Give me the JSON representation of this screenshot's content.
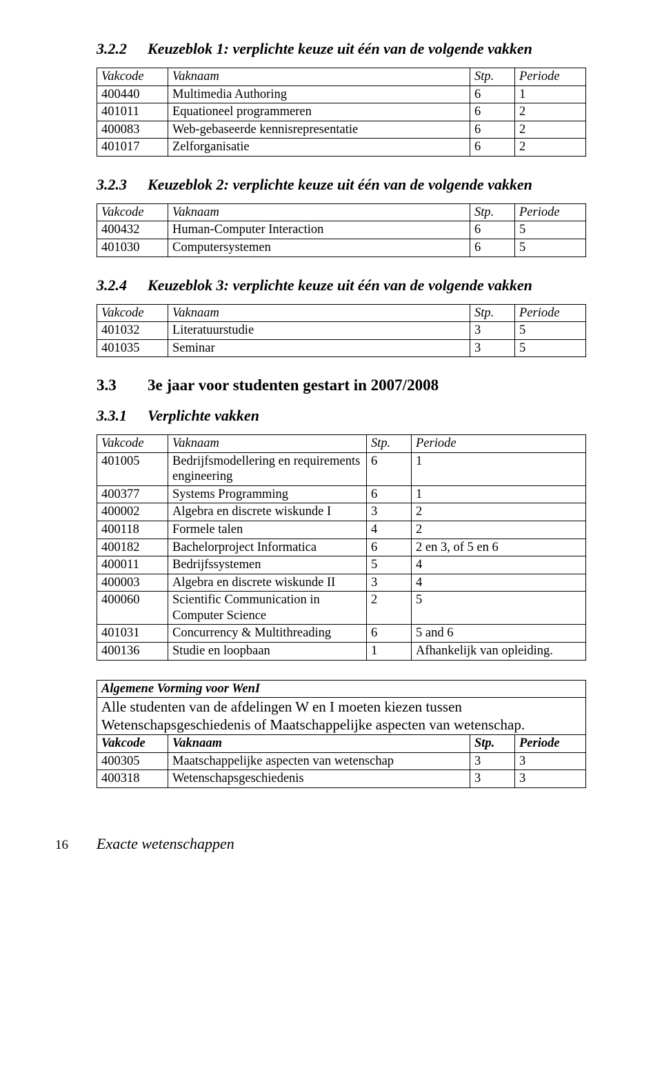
{
  "sections": {
    "s322": {
      "num": "3.2.2",
      "title": "Keuzeblok 1: verplichte keuze uit één van de volgende vakken"
    },
    "s323": {
      "num": "3.2.3",
      "title": "Keuzeblok 2: verplichte keuze uit één van de volgende vakken"
    },
    "s324": {
      "num": "3.2.4",
      "title": "Keuzeblok 3: verplichte keuze uit één van de volgende vakken"
    },
    "s33": {
      "num": "3.3",
      "title": "3e jaar voor studenten gestart in 2007/2008"
    },
    "s331": {
      "num": "3.3.1",
      "title": "Verplichte vakken"
    }
  },
  "headers": {
    "vakcode": "Vakcode",
    "vaknaam": "Vaknaam",
    "stp": "Stp.",
    "periode": "Periode"
  },
  "tbl322": {
    "rows": [
      {
        "code": "400440",
        "name": "Multimedia Authoring",
        "stp": "6",
        "per": "1"
      },
      {
        "code": "401011",
        "name": "Equationeel programmeren",
        "stp": "6",
        "per": "2"
      },
      {
        "code": "400083",
        "name": "Web-gebaseerde kennisrepresentatie",
        "stp": "6",
        "per": "2"
      },
      {
        "code": "401017",
        "name": "Zelforganisatie",
        "stp": "6",
        "per": "2"
      }
    ]
  },
  "tbl323": {
    "rows": [
      {
        "code": "400432",
        "name": "Human-Computer Interaction",
        "stp": "6",
        "per": "5"
      },
      {
        "code": "401030",
        "name": "Computersystemen",
        "stp": "6",
        "per": "5"
      }
    ]
  },
  "tbl324": {
    "rows": [
      {
        "code": "401032",
        "name": "Literatuurstudie",
        "stp": "3",
        "per": "5"
      },
      {
        "code": "401035",
        "name": "Seminar",
        "stp": "3",
        "per": "5"
      }
    ]
  },
  "tbl331": {
    "rows": [
      {
        "code": "401005",
        "name": "Bedrijfsmodellering en requirements engineering",
        "stp": "6",
        "per": "1"
      },
      {
        "code": "400377",
        "name": "Systems Programming",
        "stp": "6",
        "per": "1"
      },
      {
        "code": "400002",
        "name": "Algebra en discrete wiskunde I",
        "stp": "3",
        "per": "2"
      },
      {
        "code": "400118",
        "name": "Formele talen",
        "stp": "4",
        "per": "2"
      },
      {
        "code": "400182",
        "name": "Bachelorproject Informatica",
        "stp": "6",
        "per": "2 en 3, of 5 en 6"
      },
      {
        "code": "400011",
        "name": "Bedrijfssystemen",
        "stp": "5",
        "per": "4"
      },
      {
        "code": "400003",
        "name": "Algebra en discrete wiskunde II",
        "stp": "3",
        "per": "4"
      },
      {
        "code": "400060",
        "name": "Scientific Communication in Computer Science",
        "stp": "2",
        "per": "5"
      },
      {
        "code": "401031",
        "name": "Concurrency & Multithreading",
        "stp": "6",
        "per": "5 and 6"
      },
      {
        "code": "400136",
        "name": "Studie en loopbaan",
        "stp": "1",
        "per": "Afhankelijk van opleiding."
      }
    ]
  },
  "weni": {
    "title": "Algemene Vorming voor WenI",
    "intro": "Alle studenten van de afdelingen W en I moeten kiezen tussen Wetenschapsgeschiedenis of Maatschappelijke aspecten van wetenschap.",
    "rows": [
      {
        "code": "400305",
        "name": "Maatschappelijke aspecten van wetenschap",
        "stp": "3",
        "per": "3"
      },
      {
        "code": "400318",
        "name": "Wetenschapsgeschiedenis",
        "stp": "3",
        "per": "3"
      }
    ]
  },
  "footer": {
    "page": "16",
    "running": "Exacte wetenschappen"
  }
}
